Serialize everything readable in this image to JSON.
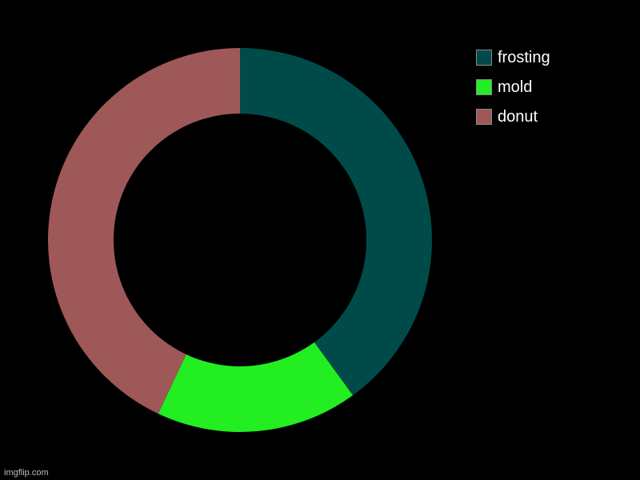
{
  "chart_data": {
    "type": "pie",
    "donut": true,
    "title": "",
    "legend_position": "top-right",
    "slices": [
      {
        "label": "frosting",
        "value": 40,
        "color": "#004a4a"
      },
      {
        "label": "mold",
        "value": 17,
        "color": "#22ee22"
      },
      {
        "label": "donut",
        "value": 43,
        "color": "#9e5858"
      }
    ]
  },
  "watermark": "imgflip.com"
}
